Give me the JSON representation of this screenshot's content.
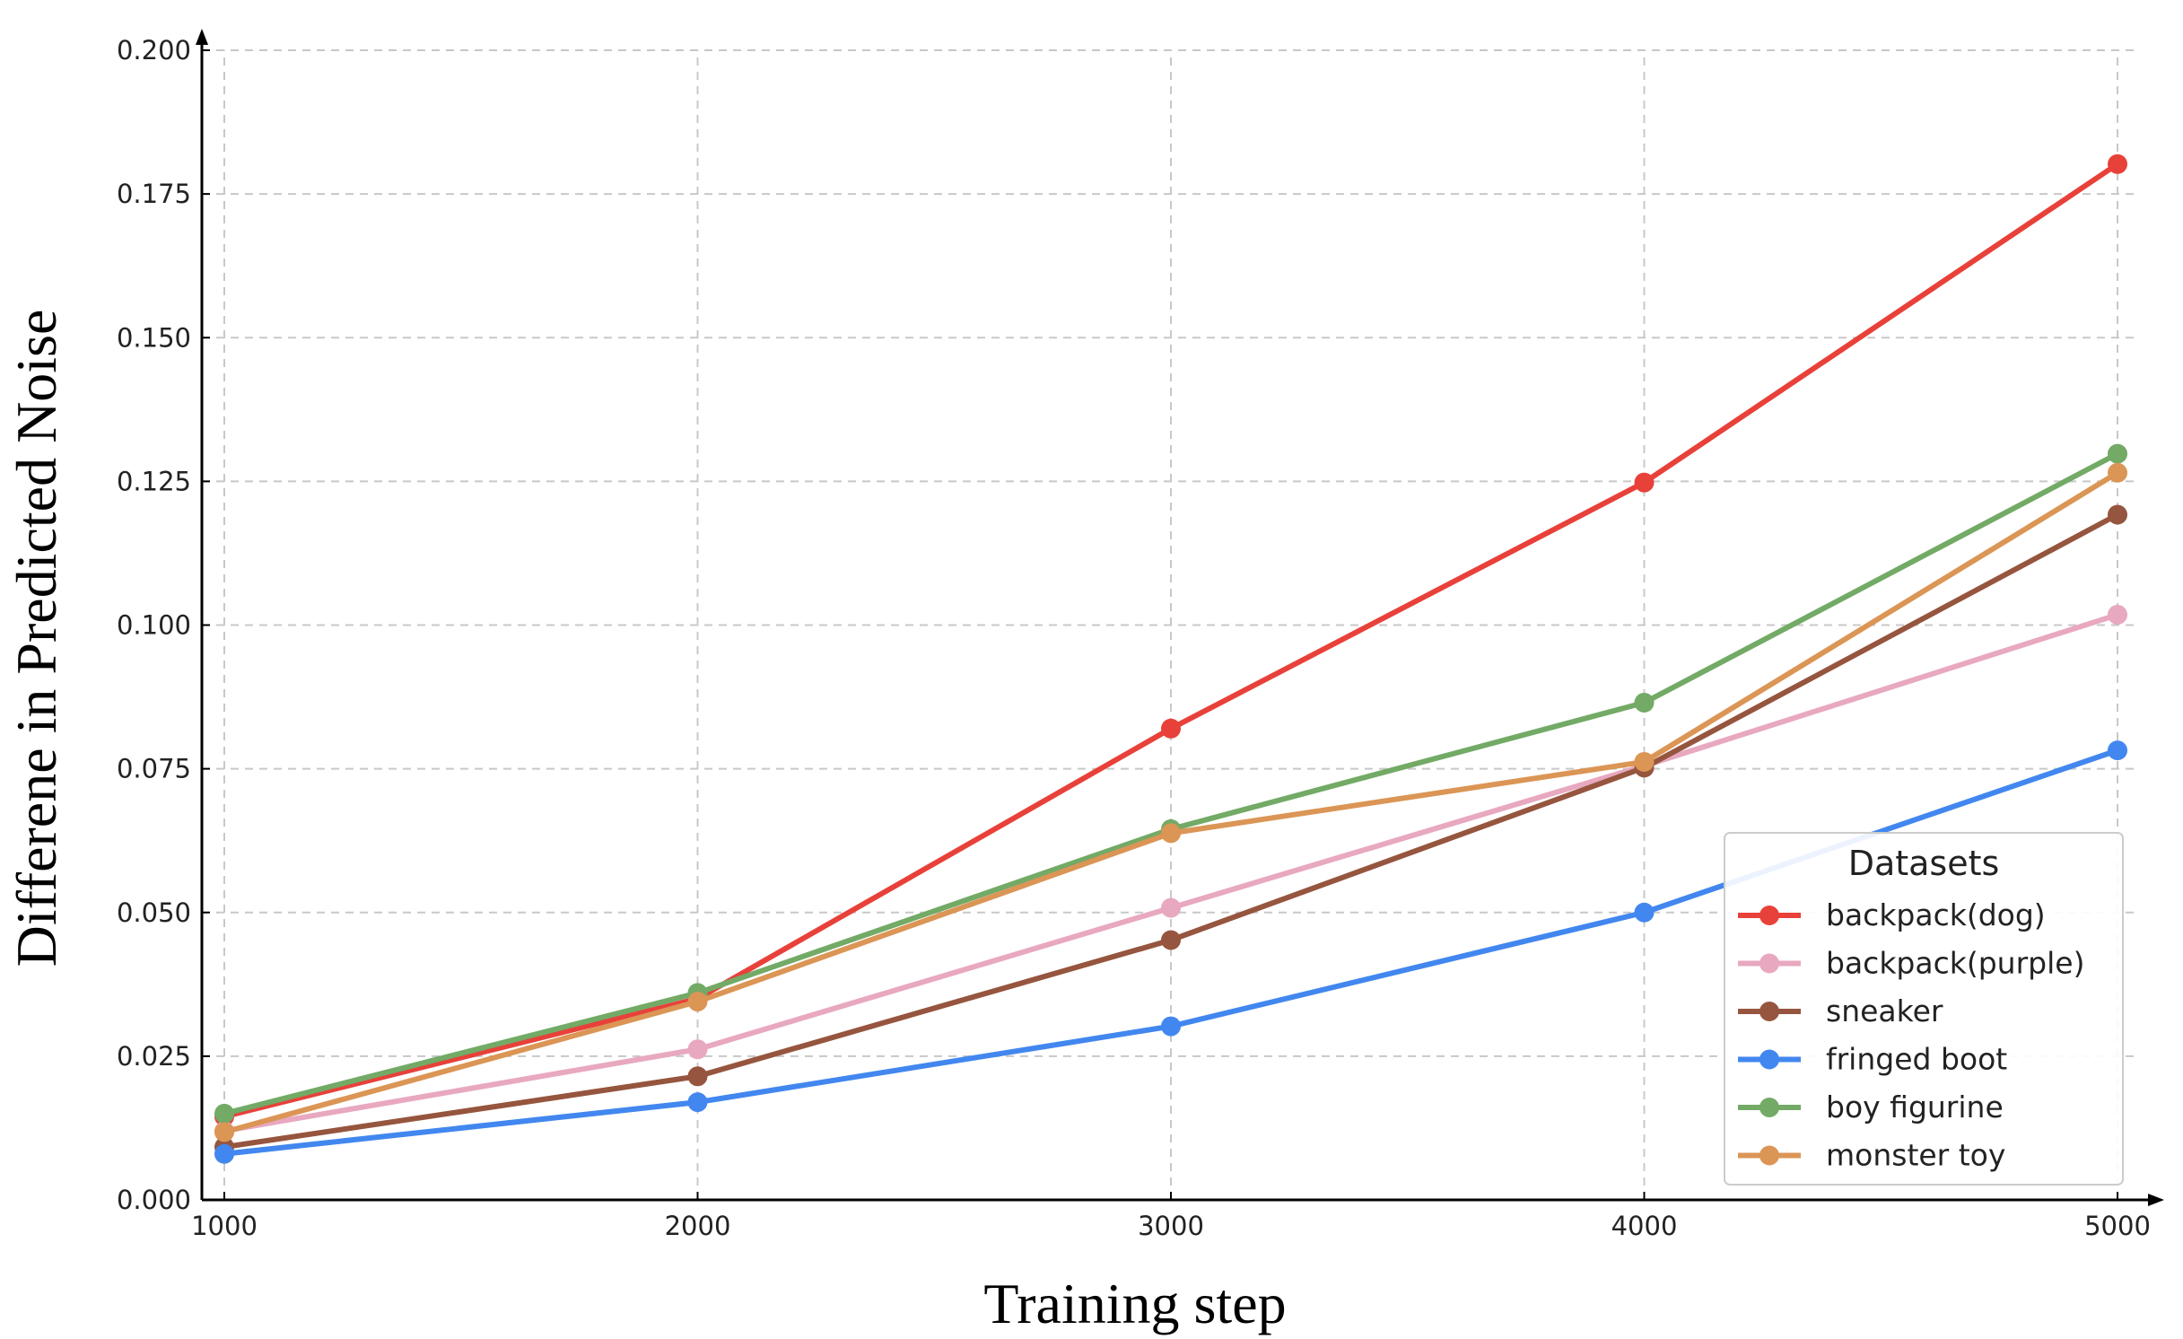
{
  "chart_data": {
    "type": "line",
    "title": "",
    "xlabel": "Training step",
    "ylabel": "Differene in Predicted Noise",
    "x": [
      1000,
      2000,
      3000,
      4000,
      5000
    ],
    "xticks": [
      1000,
      2000,
      3000,
      4000,
      5000
    ],
    "xtick_labels": [
      "1000",
      "2000",
      "3000",
      "4000",
      "5000"
    ],
    "yticks": [
      0.0,
      0.025,
      0.05,
      0.075,
      0.1,
      0.125,
      0.15,
      0.175,
      0.2
    ],
    "ytick_labels": [
      "0.000",
      "0.025",
      "0.050",
      "0.075",
      "0.100",
      "0.125",
      "0.150",
      "0.175",
      "0.200"
    ],
    "xlim": [
      1000,
      5000
    ],
    "ylim": [
      0,
      0.2
    ],
    "grid": true,
    "legend_title": "Datasets",
    "legend_position": "lower-right",
    "series": [
      {
        "name": "backpack(dog)",
        "color": "#e8413a",
        "values": [
          0.0145,
          0.035,
          0.082,
          0.1248,
          0.1802
        ]
      },
      {
        "name": "backpack(purple)",
        "color": "#e8a8c0",
        "values": [
          0.012,
          0.0262,
          0.0508,
          0.0755,
          0.1018
        ]
      },
      {
        "name": "sneaker",
        "color": "#96553e",
        "values": [
          0.0092,
          0.0215,
          0.0452,
          0.0752,
          0.1192
        ]
      },
      {
        "name": "fringed boot",
        "color": "#4287ef",
        "values": [
          0.008,
          0.017,
          0.0302,
          0.05,
          0.0782
        ]
      },
      {
        "name": "boy figurine",
        "color": "#72aa66",
        "values": [
          0.015,
          0.036,
          0.0645,
          0.0865,
          0.1298
        ]
      },
      {
        "name": "monster toy",
        "color": "#db9555",
        "values": [
          0.0118,
          0.0345,
          0.0638,
          0.0762,
          0.1265
        ]
      }
    ]
  }
}
